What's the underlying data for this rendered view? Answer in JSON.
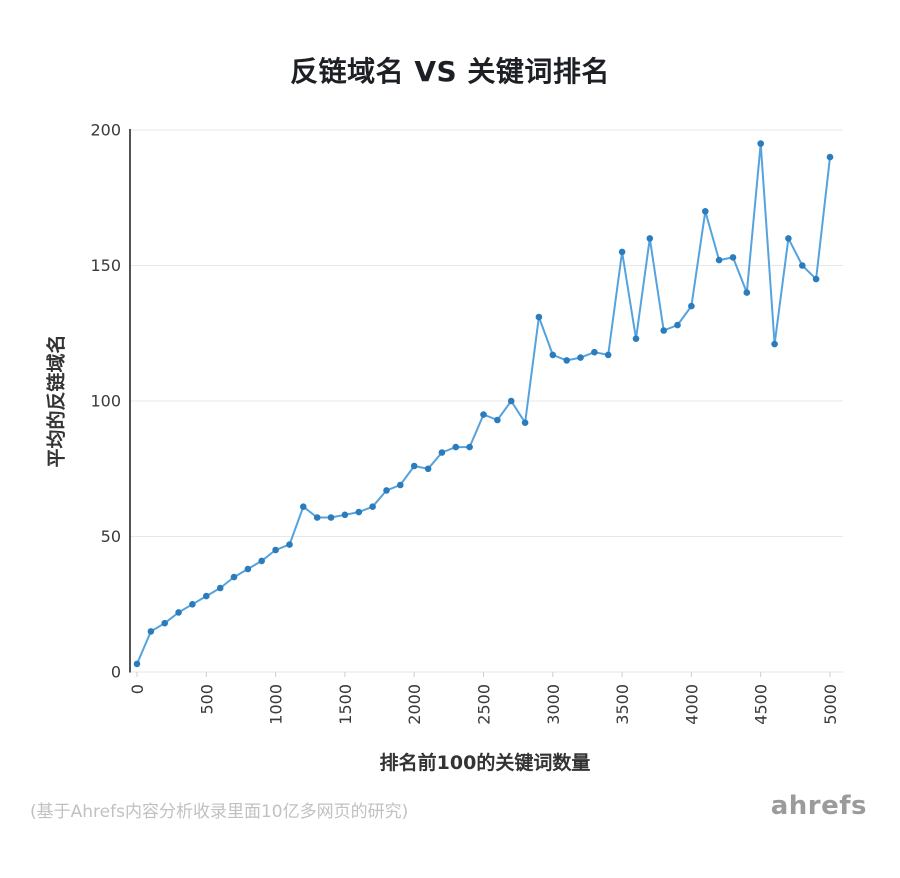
{
  "title": "反链域名 VS 关键词排名",
  "footer": {
    "note": "(基于Ahrefs内容分析收录里面10亿多网页的研究)",
    "brand": "ahrefs"
  },
  "chart_data": {
    "type": "line",
    "title": "反链域名 VS 关键词排名",
    "xlabel": "排名前100的关键词数量",
    "ylabel": "平均的反链域名",
    "xlim": [
      0,
      5000
    ],
    "ylim": [
      0,
      200
    ],
    "x_ticks": [
      0,
      500,
      1000,
      1500,
      2000,
      2500,
      3000,
      3500,
      4000,
      4500,
      5000
    ],
    "y_ticks": [
      0,
      50,
      100,
      150,
      200
    ],
    "grid": "horizontal",
    "legend": "none",
    "markers": "circle",
    "colors": {
      "line": "#55a3de",
      "point": "#2b7cbd",
      "grid": "#e7e7e7",
      "axis": "#1a1a1a",
      "tick": "#cfcfcf",
      "tick_text": "#3a3a3a"
    },
    "x": [
      0,
      100,
      200,
      300,
      400,
      500,
      600,
      700,
      800,
      900,
      1000,
      1100,
      1200,
      1300,
      1400,
      1500,
      1600,
      1700,
      1800,
      1900,
      2000,
      2100,
      2200,
      2300,
      2400,
      2500,
      2600,
      2700,
      2800,
      2900,
      3000,
      3100,
      3200,
      3300,
      3400,
      3500,
      3600,
      3700,
      3800,
      3900,
      4000,
      4100,
      4200,
      4300,
      4400,
      4500,
      4600,
      4700,
      4800,
      4900,
      5000
    ],
    "y": [
      3,
      15,
      18,
      22,
      25,
      28,
      31,
      35,
      38,
      41,
      45,
      47,
      61,
      57,
      57,
      58,
      59,
      61,
      67,
      69,
      76,
      75,
      81,
      83,
      83,
      95,
      93,
      100,
      92,
      131,
      117,
      115,
      116,
      118,
      117,
      155,
      123,
      160,
      126,
      128,
      135,
      170,
      152,
      153,
      140,
      195,
      121,
      160,
      150,
      145,
      190
    ]
  }
}
